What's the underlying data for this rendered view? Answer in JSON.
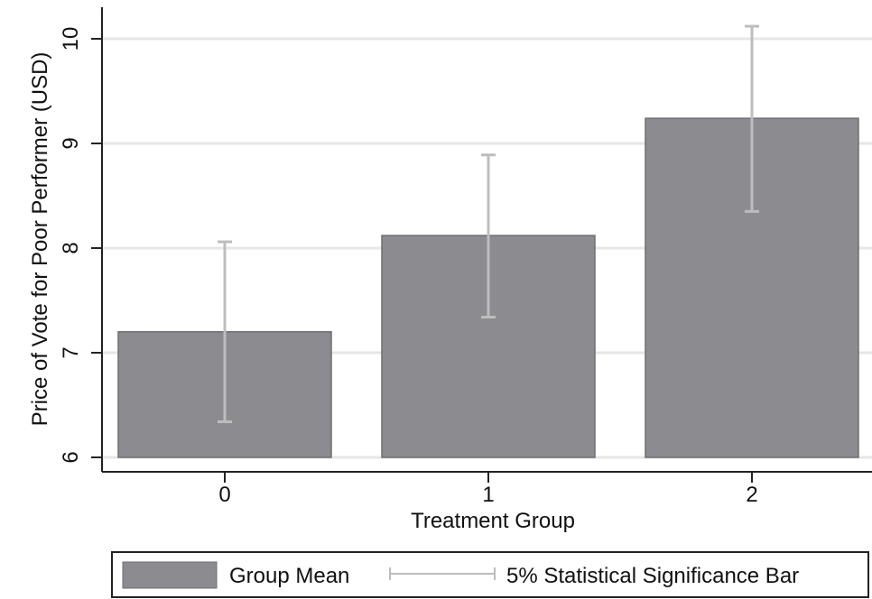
{
  "chart_data": {
    "type": "bar",
    "title": "",
    "xlabel": "Treatment Group",
    "ylabel": "Price of Vote for Poor Performer (USD)",
    "categories": [
      "0",
      "1",
      "2"
    ],
    "series": [
      {
        "name": "Group Mean",
        "values": [
          7.2,
          8.12,
          9.24
        ],
        "ci_low": [
          6.34,
          7.34,
          8.35
        ],
        "ci_high": [
          8.06,
          8.89,
          10.12
        ]
      }
    ],
    "error_bar_label": "5% Statistical Significance Bar",
    "yticks": [
      "6",
      "7",
      "8",
      "9",
      "10"
    ],
    "ylim": [
      6,
      10.3
    ],
    "grid": true,
    "legend_position": "bottom"
  },
  "colors": {
    "bar": "#8c8c90",
    "bar_edge": "#6e6e72",
    "error_bar": "#bdbdbd",
    "grid": "#e6e6e6",
    "axis": "#222222"
  }
}
